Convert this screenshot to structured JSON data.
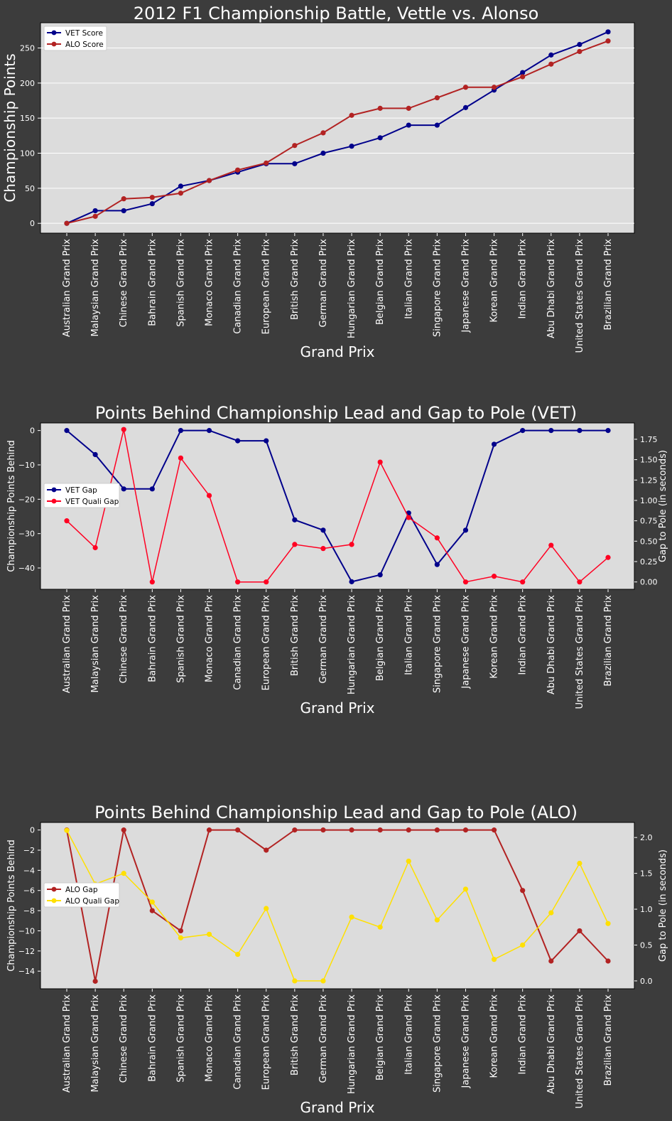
{
  "chart_data": [
    {
      "type": "line",
      "title": "2012 F1 Championship Battle, Vettle vs. Alonso",
      "xlabel": "Grand Prix",
      "ylabel": "Championship Points",
      "ylim": [
        -14,
        286
      ],
      "yticks": [
        0,
        50,
        100,
        150,
        200,
        250
      ],
      "grid": "horizontal",
      "legend_position": "top-left",
      "categories": [
        "Australian Grand Prix",
        "Malaysian Grand Prix",
        "Chinese Grand Prix",
        "Bahrain Grand Prix",
        "Spanish Grand Prix",
        "Monaco Grand Prix",
        "Canadian Grand Prix",
        "European Grand Prix",
        "British Grand Prix",
        "German Grand Prix",
        "Hungarian Grand Prix",
        "Belgian Grand Prix",
        "Italian Grand Prix",
        "Singapore Grand Prix",
        "Japanese Grand Prix",
        "Korean Grand Prix",
        "Indian Grand Prix",
        "Abu Dhabi Grand Prix",
        "United States Grand Prix",
        "Brazilian Grand Prix"
      ],
      "series": [
        {
          "name": "VET Score",
          "color": "#00008b",
          "axis": "left",
          "values": [
            0,
            18,
            18,
            28,
            53,
            61,
            73,
            85,
            85,
            100,
            110,
            122,
            140,
            140,
            165,
            190,
            215,
            240,
            255,
            273
          ]
        },
        {
          "name": "ALO Score",
          "color": "#b22222",
          "axis": "left",
          "values": [
            0,
            10,
            35,
            37,
            43,
            61,
            76,
            86,
            111,
            129,
            154,
            164,
            164,
            179,
            194,
            194,
            209,
            227,
            245,
            260
          ]
        }
      ]
    },
    {
      "type": "line",
      "title": "Points Behind Championship Lead and Gap to Pole (VET)",
      "xlabel": "Grand Prix",
      "ylabel": "Championship Points Behind",
      "y2label": "Gap to Pole (in seconds)",
      "ylim": [
        -46.2,
        2.2
      ],
      "yticks": [
        0,
        -10,
        -20,
        -30,
        -40
      ],
      "y2lim": [
        -0.09,
        1.95
      ],
      "y2ticks": [
        0.0,
        0.25,
        0.5,
        0.75,
        1.0,
        1.25,
        1.5,
        1.75
      ],
      "grid": "none",
      "legend_position": "center-left",
      "categories": [
        "Australian Grand Prix",
        "Malaysian Grand Prix",
        "Chinese Grand Prix",
        "Bahrain Grand Prix",
        "Spanish Grand Prix",
        "Monaco Grand Prix",
        "Canadian Grand Prix",
        "European Grand Prix",
        "British Grand Prix",
        "German Grand Prix",
        "Hungarian Grand Prix",
        "Belgian Grand Prix",
        "Italian Grand Prix",
        "Singapore Grand Prix",
        "Japanese Grand Prix",
        "Korean Grand Prix",
        "Indian Grand Prix",
        "Abu Dhabi Grand Prix",
        "United States Grand Prix",
        "Brazilian Grand Prix"
      ],
      "series": [
        {
          "name": "VET Gap",
          "color": "#00008b",
          "axis": "left",
          "values": [
            0,
            -7,
            -17,
            -17,
            0,
            0,
            -3,
            -3,
            -26,
            -29,
            -44,
            -42,
            -24,
            -39,
            -29,
            -4,
            0,
            0,
            0,
            0
          ]
        },
        {
          "name": "VET Quali Gap",
          "color": "#ff0022",
          "axis": "right",
          "values": [
            0.75,
            0.42,
            1.87,
            0.0,
            1.52,
            1.06,
            0.0,
            0.0,
            0.46,
            0.41,
            0.46,
            1.47,
            0.79,
            0.54,
            0.0,
            0.07,
            0.0,
            0.45,
            0.0,
            0.3
          ]
        }
      ]
    },
    {
      "type": "line",
      "title": "Points Behind Championship Lead and Gap to Pole (ALO)",
      "xlabel": "Grand Prix",
      "ylabel": "Championship Points Behind",
      "y2label": "Gap to Pole (in seconds)",
      "ylim": [
        -15.75,
        0.75
      ],
      "yticks": [
        0,
        -2,
        -4,
        -6,
        -8,
        -10,
        -12,
        -14
      ],
      "y2lim": [
        -0.11,
        2.21
      ],
      "y2ticks": [
        0.0,
        0.5,
        1.0,
        1.5,
        2.0
      ],
      "grid": "none",
      "legend_position": "center-left",
      "categories": [
        "Australian Grand Prix",
        "Malaysian Grand Prix",
        "Chinese Grand Prix",
        "Bahrain Grand Prix",
        "Spanish Grand Prix",
        "Monaco Grand Prix",
        "Canadian Grand Prix",
        "European Grand Prix",
        "British Grand Prix",
        "German Grand Prix",
        "Hungarian Grand Prix",
        "Belgian Grand Prix",
        "Italian Grand Prix",
        "Singapore Grand Prix",
        "Japanese Grand Prix",
        "Korean Grand Prix",
        "Indian Grand Prix",
        "Abu Dhabi Grand Prix",
        "United States Grand Prix",
        "Brazilian Grand Prix"
      ],
      "series": [
        {
          "name": "ALO Gap",
          "color": "#b22222",
          "axis": "left",
          "values": [
            0,
            -15,
            0,
            -8,
            -10,
            0,
            0,
            -2,
            0,
            0,
            0,
            0,
            0,
            0,
            0,
            0,
            -6,
            -13,
            -10,
            -13
          ]
        },
        {
          "name": "ALO Quali Gap",
          "color": "#ffe000",
          "axis": "right",
          "values": [
            2.1,
            1.35,
            1.5,
            1.1,
            0.6,
            0.65,
            0.37,
            1.01,
            0.0,
            0.0,
            0.89,
            0.75,
            1.67,
            0.85,
            1.28,
            0.3,
            0.5,
            0.95,
            1.64,
            0.8
          ]
        }
      ]
    }
  ]
}
